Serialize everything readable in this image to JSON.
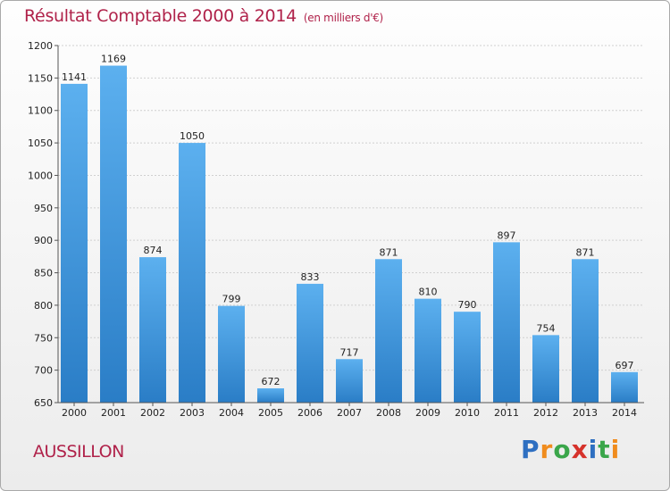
{
  "chart_data": {
    "type": "bar",
    "title": "Résultat Comptable 2000 à 2014",
    "subtitle": "(en milliers d'€)",
    "categories": [
      "2000",
      "2001",
      "2002",
      "2003",
      "2004",
      "2005",
      "2006",
      "2007",
      "2008",
      "2009",
      "2010",
      "2011",
      "2012",
      "2013",
      "2014"
    ],
    "values": [
      1141,
      1169,
      874,
      1050,
      799,
      672,
      833,
      717,
      871,
      810,
      790,
      897,
      754,
      871,
      697
    ],
    "ylim": [
      650,
      1200
    ],
    "yticks": [
      650,
      700,
      750,
      800,
      850,
      900,
      950,
      1000,
      1050,
      1100,
      1150,
      1200
    ],
    "xlabel": "",
    "ylabel": "",
    "grid": true,
    "bar_color": "#3f97dc"
  },
  "footer": {
    "commune": "AUSSILLON",
    "logo_letters": [
      "P",
      "r",
      "o",
      "x",
      "i",
      "t",
      "i"
    ]
  },
  "colors": {
    "title": "#b0224a",
    "logo": [
      "#2e6fc1",
      "#f08c1e",
      "#3aa64a",
      "#d6322b",
      "#2e6fc1",
      "#3aa64a",
      "#f08c1e"
    ]
  }
}
